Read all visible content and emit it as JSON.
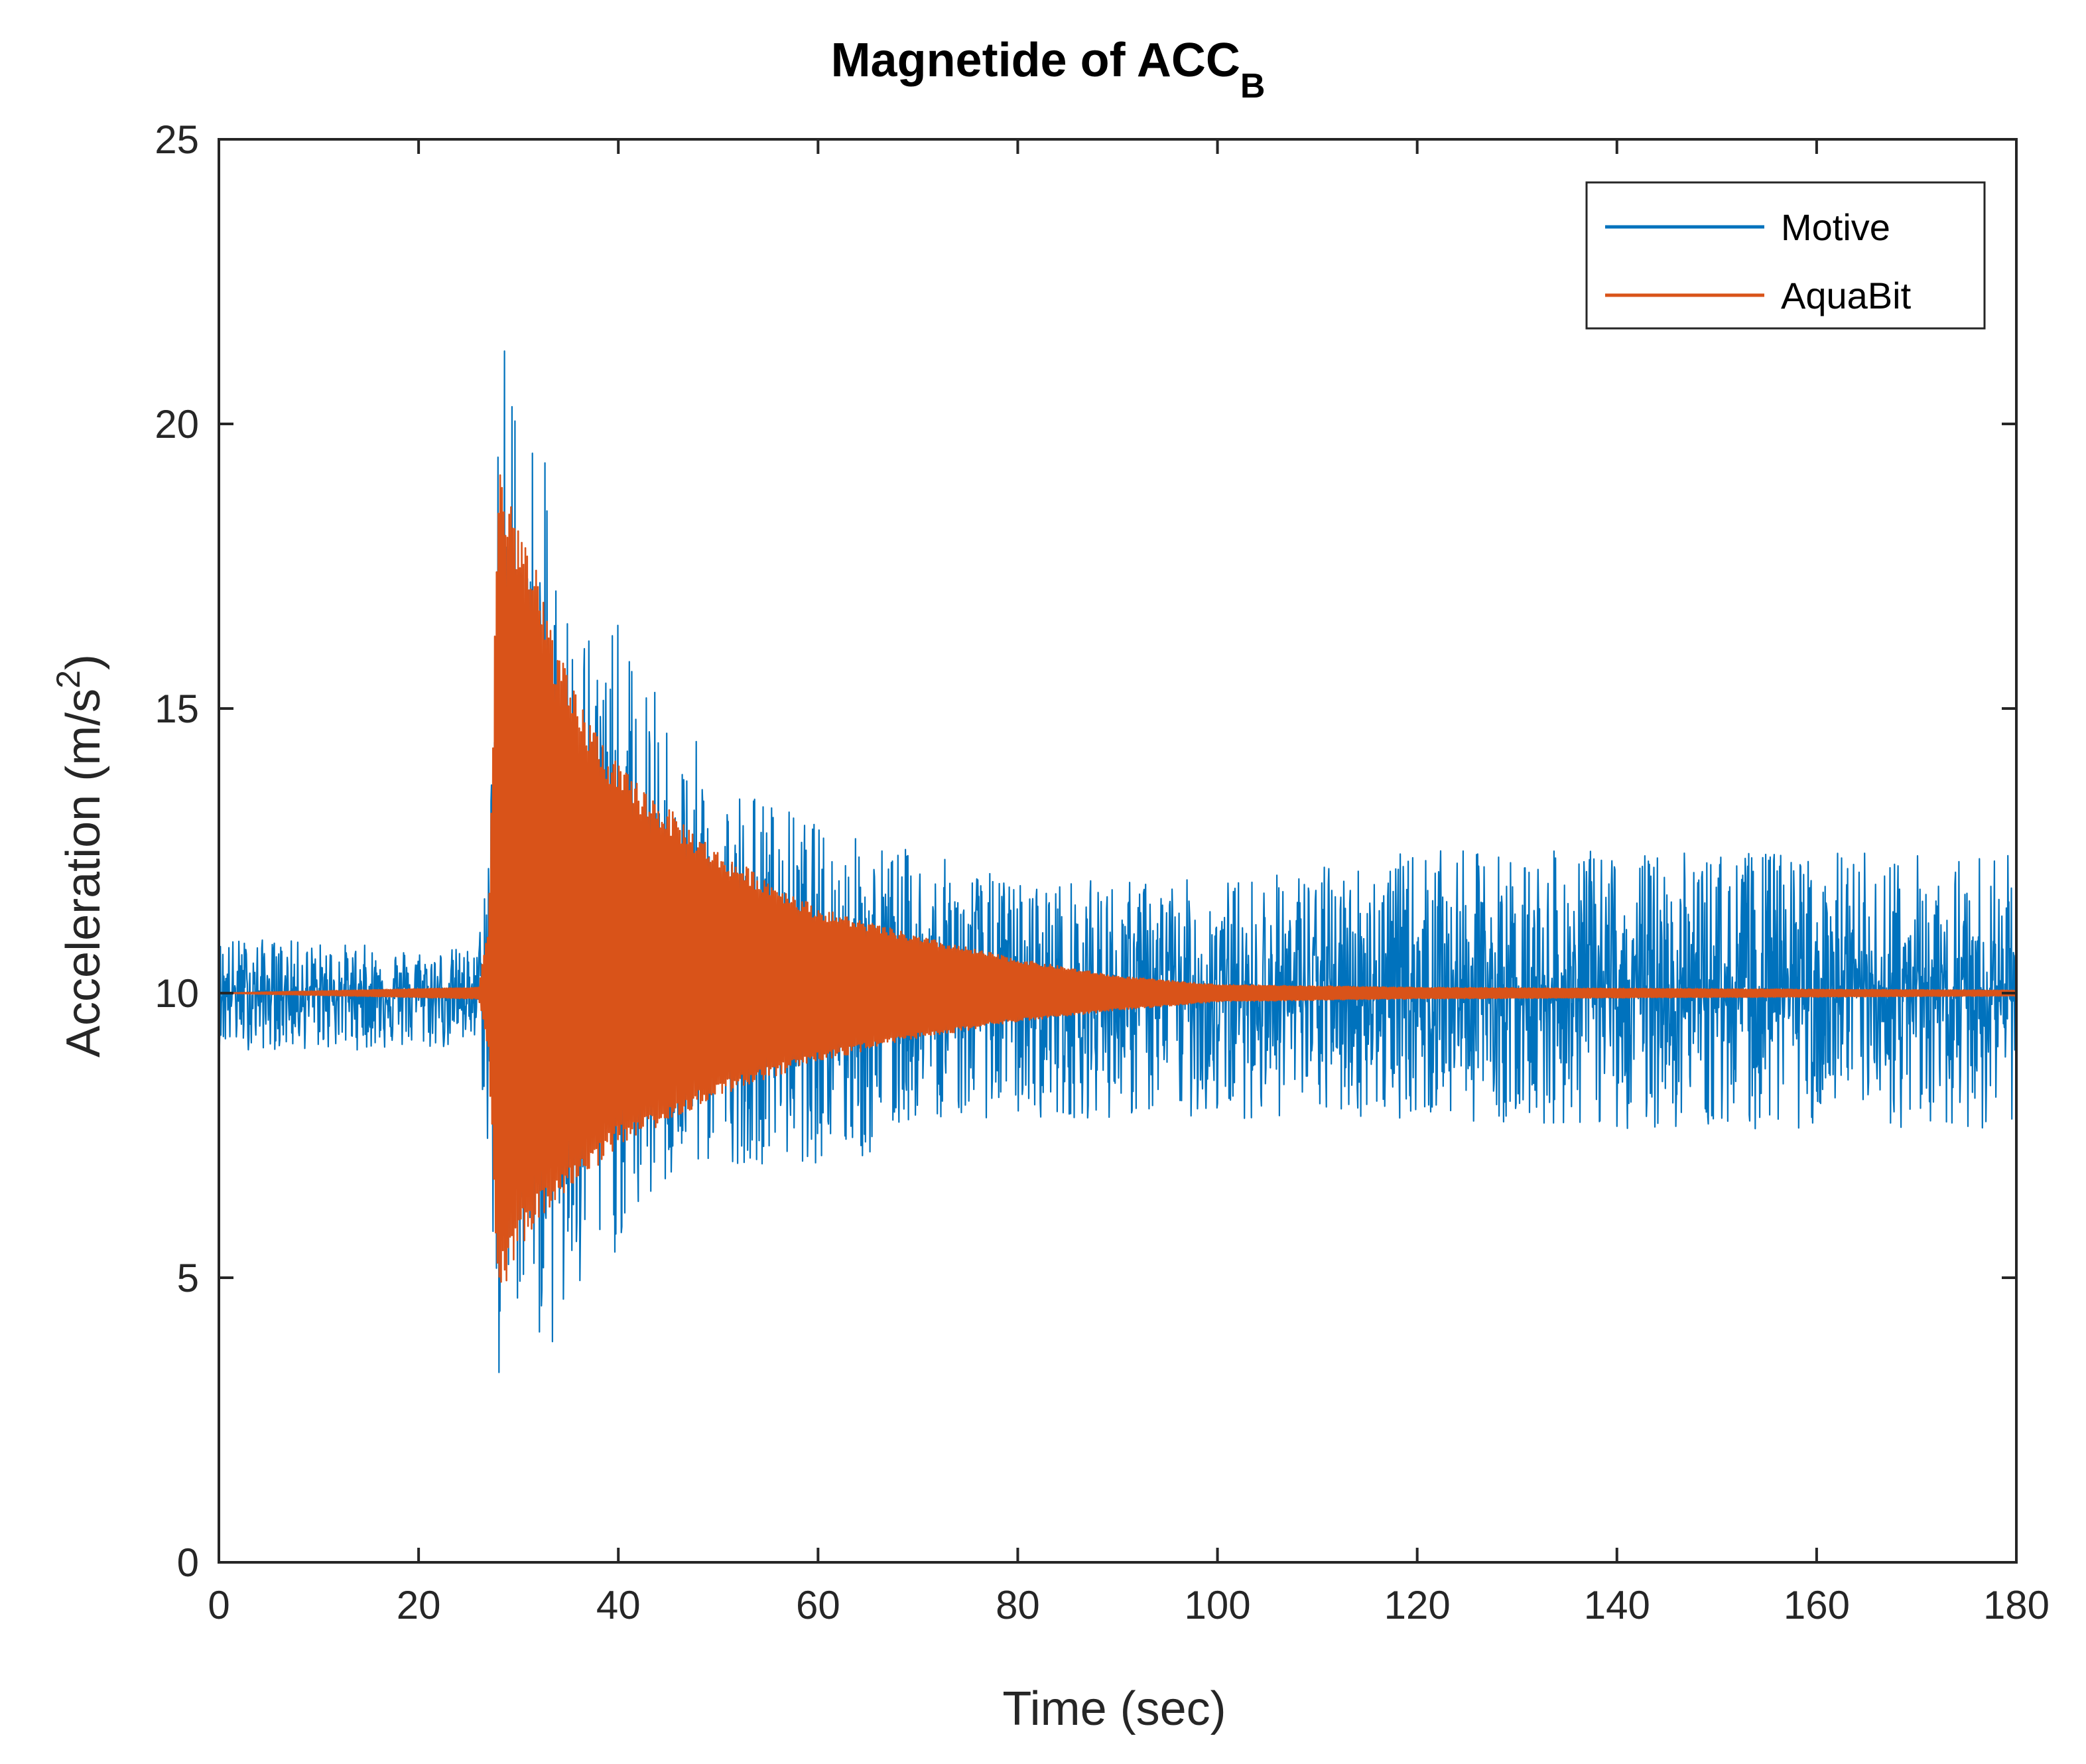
{
  "chart_data": {
    "type": "line",
    "title": "Magnetide of ACC",
    "title_subscript": "B",
    "xlabel": "Time (sec)",
    "ylabel": "Acceleration (m/s",
    "ylabel_superscript": "2",
    "ylabel_suffix": ")",
    "xlim": [
      0,
      180
    ],
    "ylim": [
      0,
      25
    ],
    "xticks": [
      0,
      20,
      40,
      60,
      80,
      100,
      120,
      140,
      160,
      180
    ],
    "yticks": [
      0,
      5,
      10,
      15,
      20,
      25
    ],
    "grid": false,
    "legend_position": "top-right",
    "baseline": 10,
    "series": [
      {
        "name": "Motive",
        "color": "#0072BD",
        "description": "noisy acceleration magnitude around 10 m/s^2; spike starting ~27 s",
        "envelope_upper": [
          {
            "x": 0,
            "y": 11.0
          },
          {
            "x": 20,
            "y": 10.8
          },
          {
            "x": 26,
            "y": 10.8
          },
          {
            "x": 27,
            "y": 13.5
          },
          {
            "x": 28,
            "y": 22.3
          },
          {
            "x": 30,
            "y": 21.5
          },
          {
            "x": 35,
            "y": 17.5
          },
          {
            "x": 40,
            "y": 16.5
          },
          {
            "x": 45,
            "y": 15.0
          },
          {
            "x": 50,
            "y": 14.0
          },
          {
            "x": 60,
            "y": 13.0
          },
          {
            "x": 70,
            "y": 12.5
          },
          {
            "x": 80,
            "y": 12.0
          },
          {
            "x": 100,
            "y": 12.0
          },
          {
            "x": 120,
            "y": 12.5
          },
          {
            "x": 140,
            "y": 12.5
          },
          {
            "x": 160,
            "y": 12.5
          },
          {
            "x": 180,
            "y": 12.5
          }
        ],
        "envelope_lower": [
          {
            "x": 0,
            "y": 9.0
          },
          {
            "x": 20,
            "y": 9.0
          },
          {
            "x": 26,
            "y": 9.0
          },
          {
            "x": 27,
            "y": 7.0
          },
          {
            "x": 28,
            "y": 2.0
          },
          {
            "x": 30,
            "y": 4.5
          },
          {
            "x": 34,
            "y": 3.3
          },
          {
            "x": 40,
            "y": 5.5
          },
          {
            "x": 45,
            "y": 6.5
          },
          {
            "x": 50,
            "y": 7.0
          },
          {
            "x": 65,
            "y": 7.0
          },
          {
            "x": 70,
            "y": 7.8
          },
          {
            "x": 80,
            "y": 7.8
          },
          {
            "x": 100,
            "y": 7.8
          },
          {
            "x": 120,
            "y": 7.8
          },
          {
            "x": 140,
            "y": 7.6
          },
          {
            "x": 160,
            "y": 7.6
          },
          {
            "x": 180,
            "y": 7.6
          }
        ]
      },
      {
        "name": "AquaBit",
        "color": "#D95319",
        "description": "damped oscillation around 10 m/s^2 starting ~28 s, decaying by ~110 s",
        "envelope_upper": [
          {
            "x": 0,
            "y": 10.0
          },
          {
            "x": 26,
            "y": 10.1
          },
          {
            "x": 27,
            "y": 11.2
          },
          {
            "x": 28,
            "y": 19.5
          },
          {
            "x": 30,
            "y": 18.5
          },
          {
            "x": 35,
            "y": 15.5
          },
          {
            "x": 40,
            "y": 14.0
          },
          {
            "x": 50,
            "y": 12.5
          },
          {
            "x": 60,
            "y": 11.5
          },
          {
            "x": 70,
            "y": 11.0
          },
          {
            "x": 80,
            "y": 10.6
          },
          {
            "x": 90,
            "y": 10.3
          },
          {
            "x": 100,
            "y": 10.15
          },
          {
            "x": 120,
            "y": 10.1
          },
          {
            "x": 180,
            "y": 10.05
          }
        ],
        "envelope_lower": [
          {
            "x": 0,
            "y": 10.0
          },
          {
            "x": 26,
            "y": 9.9
          },
          {
            "x": 27,
            "y": 9.0
          },
          {
            "x": 28,
            "y": 4.5
          },
          {
            "x": 30,
            "y": 5.5
          },
          {
            "x": 35,
            "y": 6.5
          },
          {
            "x": 40,
            "y": 7.3
          },
          {
            "x": 50,
            "y": 8.2
          },
          {
            "x": 60,
            "y": 8.8
          },
          {
            "x": 70,
            "y": 9.2
          },
          {
            "x": 80,
            "y": 9.5
          },
          {
            "x": 90,
            "y": 9.7
          },
          {
            "x": 100,
            "y": 9.85
          },
          {
            "x": 120,
            "y": 9.9
          },
          {
            "x": 180,
            "y": 9.95
          }
        ]
      }
    ]
  }
}
